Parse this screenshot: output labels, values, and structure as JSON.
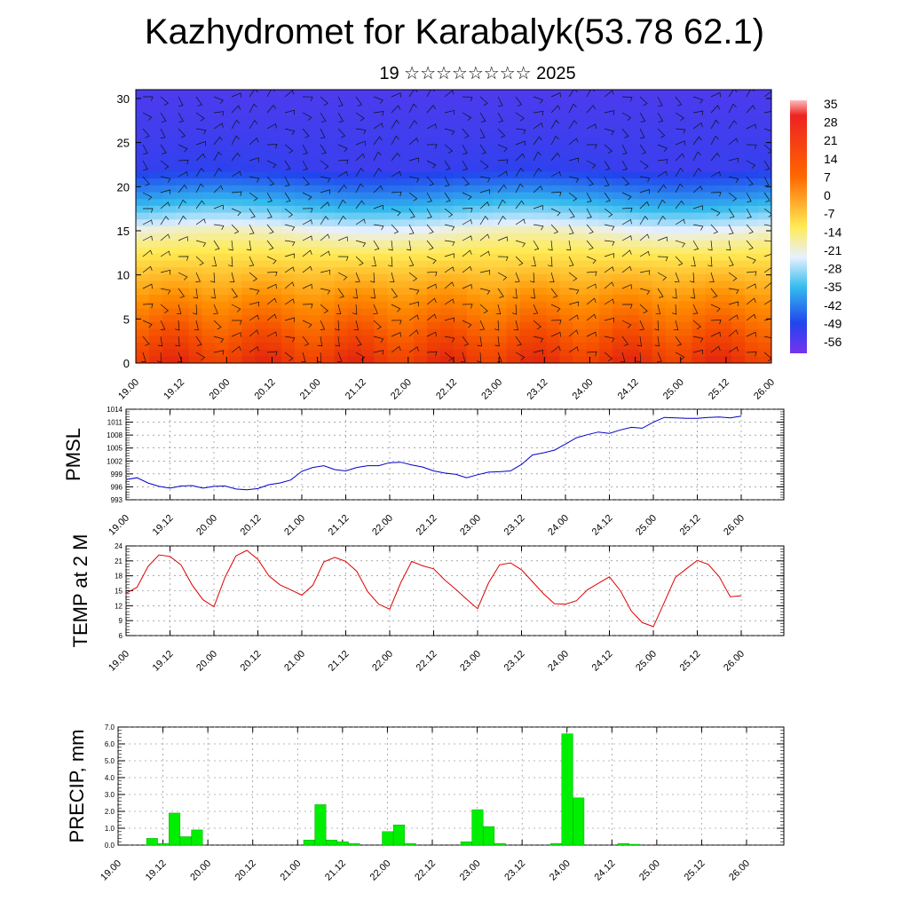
{
  "title": "Kazhydromet for Karabalyk(53.78 62.1)",
  "subtitle": "19 ☆☆☆☆☆☆☆☆ 2025",
  "colors": {
    "pmsl": "#0000cc",
    "temp": "#dd0000",
    "precip": "#00ee00",
    "precip_edge": "#009900"
  },
  "chart_data": [
    {
      "type": "heatmap",
      "name": "cross-section",
      "x_ticks": [
        "19.00",
        "19.12",
        "20.00",
        "20.12",
        "21.00",
        "21.12",
        "22.00",
        "22.12",
        "23.00",
        "23.12",
        "24.00",
        "24.12",
        "25.00",
        "25.12",
        "26.00"
      ],
      "ylim": [
        0,
        31
      ],
      "y_ticks": [
        0,
        5,
        10,
        15,
        20,
        25,
        30
      ],
      "colorbar": {
        "labels": [
          35,
          28,
          21,
          14,
          7,
          0,
          -7,
          -14,
          -21,
          -28,
          -35,
          -42,
          -49,
          -56
        ],
        "range": [
          -63,
          40
        ]
      },
      "overlay": "wind barbs"
    },
    {
      "type": "line",
      "ylabel": "PMSL",
      "ylim": [
        993,
        1014
      ],
      "y_ticks": [
        993,
        996,
        999,
        1002,
        1005,
        1008,
        1011,
        1014
      ],
      "x_ticks": [
        "19.00",
        "19.12",
        "20.00",
        "20.12",
        "21.00",
        "21.12",
        "22.00",
        "22.12",
        "23.00",
        "23.12",
        "24.00",
        "24.12",
        "25.00",
        "25.12",
        "26.00"
      ],
      "x": [
        0,
        3,
        6,
        9,
        12,
        15,
        18,
        21,
        24,
        27,
        30,
        33,
        36,
        39,
        42,
        45,
        48,
        51,
        54,
        57,
        60,
        63,
        66,
        69,
        72,
        75,
        78,
        81,
        84,
        87,
        90,
        93,
        96,
        99,
        102,
        105,
        108,
        111,
        114,
        117,
        120,
        123,
        126,
        129,
        132,
        135,
        138,
        141,
        144,
        147,
        150,
        153,
        156,
        159,
        162,
        165,
        168
      ],
      "series": [
        {
          "values": [
            997.7,
            998.1,
            996.9,
            996.1,
            995.7,
            996.2,
            996.3,
            995.7,
            996.1,
            996.2,
            995.5,
            995.3,
            995.6,
            996.5,
            996.9,
            997.6,
            999.6,
            1000.5,
            1000.9,
            1000.0,
            999.7,
            1000.5,
            1000.9,
            1000.9,
            1001.6,
            1001.7,
            1001.1,
            1000.6,
            999.7,
            999.2,
            998.9,
            998.1,
            998.8,
            999.4,
            999.5,
            999.7,
            1001.2,
            1003.4,
            1003.9,
            1004.5,
            1005.9,
            1007.4,
            1008.1,
            1008.7,
            1008.4,
            1009.2,
            1009.8,
            1009.6,
            1011.0,
            1012.1,
            1012.0,
            1011.9,
            1011.9,
            1012.1,
            1012.2,
            1012.0,
            1012.4
          ]
        }
      ]
    },
    {
      "type": "line",
      "ylabel": "TEMP at 2 M",
      "ylim": [
        6,
        24
      ],
      "y_ticks": [
        6,
        9,
        12,
        15,
        18,
        21,
        24
      ],
      "x_ticks": [
        "19.00",
        "19.12",
        "20.00",
        "20.12",
        "21.00",
        "21.12",
        "22.00",
        "22.12",
        "23.00",
        "23.12",
        "24.00",
        "24.12",
        "25.00",
        "25.12",
        "26.00"
      ],
      "x": [
        0,
        3,
        6,
        9,
        12,
        15,
        18,
        21,
        24,
        27,
        30,
        33,
        36,
        39,
        42,
        45,
        48,
        51,
        54,
        57,
        60,
        63,
        66,
        69,
        72,
        75,
        78,
        81,
        84,
        87,
        90,
        93,
        96,
        99,
        102,
        105,
        108,
        111,
        114,
        117,
        120,
        123,
        126,
        129,
        132,
        135,
        138,
        141,
        144,
        147,
        150,
        153,
        156,
        159,
        162,
        165,
        168
      ],
      "series": [
        {
          "values": [
            14.5,
            15.7,
            19.9,
            22.2,
            21.9,
            20.2,
            16.2,
            13.2,
            11.8,
            17.7,
            22.0,
            23.1,
            21.3,
            18.0,
            16.2,
            15.2,
            14.1,
            16.1,
            20.8,
            21.7,
            20.9,
            18.9,
            14.8,
            12.3,
            11.3,
            16.6,
            20.9,
            20.0,
            19.4,
            17.2,
            15.3,
            13.3,
            11.4,
            16.6,
            20.2,
            20.6,
            19.2,
            16.8,
            14.4,
            12.4,
            12.3,
            13.0,
            15.2,
            16.5,
            17.8,
            15.0,
            10.9,
            8.6,
            7.8,
            12.7,
            17.7,
            19.4,
            21.1,
            20.3,
            17.8,
            13.8,
            14.0
          ]
        }
      ]
    },
    {
      "type": "bar",
      "ylabel": "PRECIP, mm",
      "ylim": [
        0,
        7
      ],
      "y_ticks": [
        "0.0",
        "1.0",
        "2.0",
        "3.0",
        "4.0",
        "5.0",
        "6.0",
        "7.0"
      ],
      "x_ticks": [
        "19.00",
        "19.12",
        "20.00",
        "20.12",
        "21.00",
        "21.12",
        "22.00",
        "22.12",
        "23.00",
        "23.12",
        "24.00",
        "24.12",
        "25.00",
        "25.12",
        "26.00"
      ],
      "x": [
        0,
        3,
        6,
        9,
        12,
        15,
        18,
        21,
        24,
        27,
        30,
        33,
        36,
        39,
        42,
        45,
        48,
        51,
        54,
        57,
        60,
        63,
        66,
        69,
        72,
        75,
        78,
        81,
        84,
        87,
        90,
        93,
        96,
        99,
        102,
        105,
        108,
        111,
        114,
        117,
        120,
        123,
        126,
        129,
        132,
        135,
        138,
        141,
        144,
        147,
        150,
        153,
        156,
        159,
        162,
        165
      ],
      "series": [
        {
          "values": [
            0.4,
            0.1,
            1.9,
            0.5,
            0.9,
            0,
            0,
            0,
            0,
            0,
            0,
            0,
            0,
            0,
            0.3,
            2.4,
            0.3,
            0.2,
            0.1,
            0,
            0,
            0.8,
            1.2,
            0.1,
            0,
            0,
            0,
            0,
            0.2,
            2.1,
            1.1,
            0.1,
            0,
            0,
            0,
            0,
            0.1,
            6.6,
            2.8,
            0,
            0,
            0,
            0.1,
            0.05,
            0,
            0,
            0,
            0,
            0,
            0,
            0,
            0,
            0,
            0,
            0,
            0
          ]
        }
      ]
    }
  ]
}
